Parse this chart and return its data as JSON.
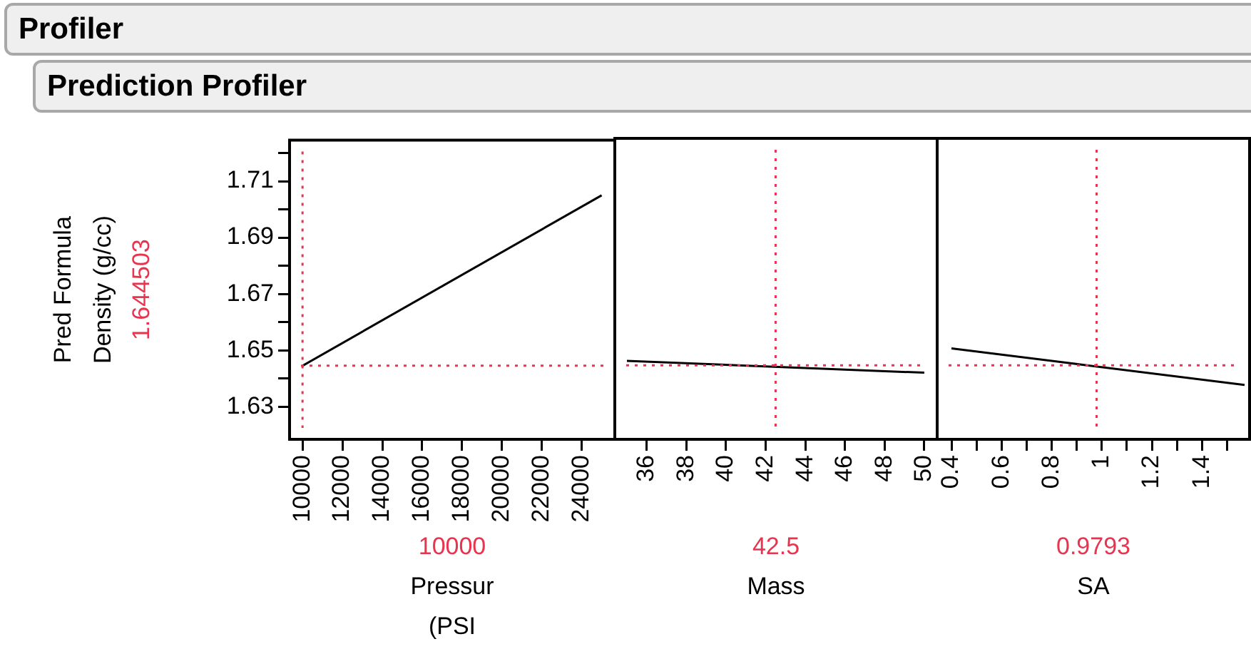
{
  "chart_data": [
    {
      "type": "line",
      "title": "Profiler",
      "subtitle": "Prediction Profiler",
      "xlabel": "Pressur\n(PSI",
      "ylabel": "Pred Formula\nDensity (g/cc)",
      "series": [
        {
          "color": "#000000",
          "x": [
            10000,
            25000
          ],
          "values": [
            1.6445,
            1.705
          ]
        }
      ],
      "xlim": [
        9350,
        25660
      ],
      "xticks": [
        10000,
        12000,
        14000,
        16000,
        18000,
        20000,
        22000,
        24000
      ],
      "ylim": [
        1.6184,
        1.7246
      ],
      "yticks": [
        1.63,
        {
          "value": 1.64,
          "label": null
        },
        1.65,
        {
          "value": 1.66,
          "label": null
        },
        1.67,
        {
          "value": 1.68,
          "label": null
        },
        1.69,
        {
          "value": 1.7,
          "label": null
        },
        1.71,
        {
          "value": 1.72,
          "label": null
        }
      ],
      "ref_lines": [
        {
          "axis": "x",
          "value": 10000,
          "label": "10000",
          "color": "#e8344e",
          "line_style": "dotted"
        },
        {
          "axis": "y",
          "value": 1.644503,
          "label": "1.644503",
          "color": "#e8344e",
          "line_style": "dotted"
        }
      ],
      "marker": "none",
      "legend": false
    },
    {
      "type": "line",
      "xlabel": "Mass",
      "series": [
        {
          "color": "#000000",
          "x": [
            35,
            50
          ],
          "values": [
            1.6461,
            1.6419
          ]
        }
      ],
      "xlim": [
        34.39,
        50.65
      ],
      "xticks": [
        36,
        38,
        40,
        42,
        44,
        46,
        48,
        50
      ],
      "ylim": [
        1.6184,
        1.7246
      ],
      "tick_labels": "x",
      "ref_lines": [
        {
          "axis": "x",
          "value": 42.5,
          "label": "42.5",
          "color": "#e8344e",
          "line_style": "dotted"
        },
        {
          "axis": "y",
          "value": 1.644503,
          "color": "#e8344e",
          "line_style": "dotted"
        }
      ],
      "marker": "none",
      "legend": false
    },
    {
      "type": "line",
      "xlabel": "SA",
      "series": [
        {
          "color": "#000000",
          "x": [
            0.4,
            1.57
          ],
          "values": [
            1.6505,
            1.6376
          ]
        }
      ],
      "xlim": [
        0.343,
        1.59
      ],
      "xticks": [
        0.4,
        {
          "value": 0.5,
          "label": null
        },
        0.6,
        {
          "value": 0.7,
          "label": null
        },
        0.8,
        {
          "value": 0.9,
          "label": null
        },
        1,
        {
          "value": 1.1,
          "label": null
        },
        1.2,
        {
          "value": 1.3,
          "label": null
        },
        1.4,
        {
          "value": 1.5,
          "label": null
        }
      ],
      "ylim": [
        1.6184,
        1.7246
      ],
      "tick_labels": "x",
      "ref_lines": [
        {
          "axis": "x",
          "value": 0.9793,
          "label": "0.9793",
          "color": "#e8344e",
          "line_style": "dotted"
        },
        {
          "axis": "y",
          "value": 1.644503,
          "color": "#e8344e",
          "line_style": "dotted"
        }
      ],
      "marker": "none",
      "legend": false
    }
  ]
}
